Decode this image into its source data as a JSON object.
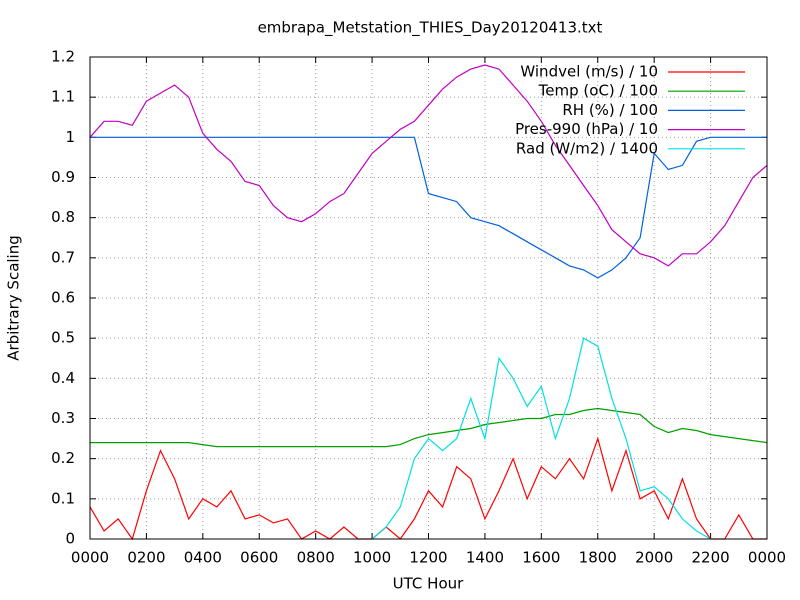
{
  "chart_data": {
    "type": "line",
    "title": "embrapa_Metstation_THIES_Day20120413.txt",
    "x_label": "UTC Hour",
    "y_label": "Arbitrary Scaling",
    "grid": true,
    "legend": "top-right",
    "xlim": [
      0,
      24
    ],
    "ylim": [
      0,
      1.2
    ],
    "xticks": [
      {
        "value": 0,
        "label": "0000"
      },
      {
        "value": 2,
        "label": "0200"
      },
      {
        "value": 4,
        "label": "0400"
      },
      {
        "value": 6,
        "label": "0600"
      },
      {
        "value": 8,
        "label": "0800"
      },
      {
        "value": 10,
        "label": "1000"
      },
      {
        "value": 12,
        "label": "1200"
      },
      {
        "value": 14,
        "label": "1400"
      },
      {
        "value": 16,
        "label": "1600"
      },
      {
        "value": 18,
        "label": "1800"
      },
      {
        "value": 20,
        "label": "2000"
      },
      {
        "value": 22,
        "label": "2200"
      },
      {
        "value": 24,
        "label": "0000"
      }
    ],
    "yticks": [
      0,
      0.1,
      0.2,
      0.3,
      0.4,
      0.5,
      0.6,
      0.7,
      0.8,
      0.9,
      1,
      1.1,
      1.2
    ],
    "x": [
      0,
      0.5,
      1,
      1.5,
      2,
      2.5,
      3,
      3.5,
      4,
      4.5,
      5,
      5.5,
      6,
      6.5,
      7,
      7.5,
      8,
      8.5,
      9,
      9.5,
      10,
      10.5,
      11,
      11.5,
      12,
      12.5,
      13,
      13.5,
      14,
      14.5,
      15,
      15.5,
      16,
      16.5,
      17,
      17.5,
      18,
      18.5,
      19,
      19.5,
      20,
      20.5,
      21,
      21.5,
      22,
      22.5,
      23,
      23.5,
      24
    ],
    "series": [
      {
        "name": "Windvel (m/s) / 10",
        "color": "#ff0000",
        "values": [
          0.08,
          0.02,
          0.05,
          0,
          0.12,
          0.22,
          0.15,
          0.05,
          0.1,
          0.08,
          0.12,
          0.05,
          0.06,
          0.04,
          0.05,
          0,
          0.02,
          0,
          0.03,
          0,
          0,
          0.03,
          0,
          0.05,
          0.12,
          0.08,
          0.18,
          0.15,
          0.05,
          0.12,
          0.2,
          0.1,
          0.18,
          0.15,
          0.2,
          0.15,
          0.25,
          0.12,
          0.22,
          0.1,
          0.12,
          0.05,
          0.15,
          0.05,
          0,
          0,
          0.06,
          0,
          0
        ]
      },
      {
        "name": "Temp (oC) / 100",
        "color": "#00a000",
        "values": [
          0.24,
          0.24,
          0.24,
          0.24,
          0.24,
          0.24,
          0.24,
          0.24,
          0.235,
          0.23,
          0.23,
          0.23,
          0.23,
          0.23,
          0.23,
          0.23,
          0.23,
          0.23,
          0.23,
          0.23,
          0.23,
          0.23,
          0.235,
          0.25,
          0.26,
          0.265,
          0.27,
          0.275,
          0.285,
          0.29,
          0.295,
          0.3,
          0.3,
          0.31,
          0.31,
          0.32,
          0.325,
          0.32,
          0.315,
          0.31,
          0.28,
          0.265,
          0.275,
          0.27,
          0.26,
          0.255,
          0.25,
          0.245,
          0.24
        ]
      },
      {
        "name": "RH (%) / 100",
        "color": "#0060e0",
        "values": [
          1,
          1,
          1,
          1,
          1,
          1,
          1,
          1,
          1,
          1,
          1,
          1,
          1,
          1,
          1,
          1,
          1,
          1,
          1,
          1,
          1,
          1,
          1,
          1,
          0.86,
          0.85,
          0.84,
          0.8,
          0.79,
          0.78,
          0.76,
          0.74,
          0.72,
          0.7,
          0.68,
          0.67,
          0.65,
          0.67,
          0.7,
          0.75,
          0.96,
          0.92,
          0.93,
          0.99,
          1,
          1,
          1,
          1,
          1
        ]
      },
      {
        "name": "Pres-990 (hPa) / 10",
        "color": "#c000c0",
        "values": [
          1,
          1.04,
          1.04,
          1.03,
          1.09,
          1.11,
          1.13,
          1.1,
          1.01,
          0.97,
          0.94,
          0.89,
          0.88,
          0.83,
          0.8,
          0.79,
          0.81,
          0.84,
          0.86,
          0.91,
          0.96,
          0.99,
          1.02,
          1.04,
          1.08,
          1.12,
          1.15,
          1.17,
          1.18,
          1.17,
          1.13,
          1.09,
          1.04,
          0.98,
          0.93,
          0.88,
          0.83,
          0.77,
          0.74,
          0.71,
          0.7,
          0.68,
          0.71,
          0.71,
          0.74,
          0.78,
          0.84,
          0.9,
          0.93
        ]
      },
      {
        "name": "Rad (W/m2) / 1400",
        "color": "#00e0e0",
        "values": [
          null,
          null,
          null,
          null,
          null,
          null,
          null,
          null,
          null,
          null,
          null,
          null,
          null,
          null,
          null,
          null,
          null,
          null,
          null,
          null,
          0,
          0.03,
          0.08,
          0.2,
          0.25,
          0.22,
          0.25,
          0.35,
          0.25,
          0.45,
          0.4,
          0.33,
          0.38,
          0.25,
          0.35,
          0.5,
          0.48,
          0.35,
          0.25,
          0.12,
          0.13,
          0.1,
          0.05,
          0.02,
          0,
          null,
          null,
          null,
          null
        ]
      }
    ]
  }
}
